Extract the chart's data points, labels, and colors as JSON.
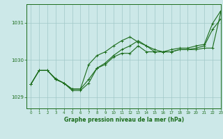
{
  "title": "Graphe pression niveau de la mer (hPa)",
  "background_color": "#cce8e8",
  "grid_color": "#a0c8c8",
  "line_color": "#1a6b1a",
  "xlim": [
    -0.5,
    23
  ],
  "ylim": [
    1028.7,
    1031.5
  ],
  "yticks": [
    1029,
    1030,
    1031
  ],
  "xticks": [
    0,
    1,
    2,
    3,
    4,
    5,
    6,
    7,
    8,
    9,
    10,
    11,
    12,
    13,
    14,
    15,
    16,
    17,
    18,
    19,
    20,
    21,
    22,
    23
  ],
  "series1": [
    1029.35,
    1029.72,
    1029.72,
    1029.48,
    1029.38,
    1029.22,
    1029.22,
    1029.48,
    1029.78,
    1029.88,
    1030.08,
    1030.18,
    1030.18,
    1030.38,
    1030.22,
    1030.22,
    1030.22,
    1030.22,
    1030.28,
    1030.28,
    1030.28,
    1030.32,
    1030.32,
    1031.28
  ],
  "series2": [
    1029.35,
    1029.72,
    1029.72,
    1029.5,
    1029.38,
    1029.18,
    1029.18,
    1029.38,
    1029.78,
    1029.92,
    1030.12,
    1030.28,
    1030.38,
    1030.52,
    1030.38,
    1030.22,
    1030.22,
    1030.22,
    1030.28,
    1030.28,
    1030.32,
    1030.38,
    1030.82,
    1031.1
  ],
  "series3": [
    1029.35,
    1029.72,
    1029.72,
    1029.48,
    1029.38,
    1029.22,
    1029.22,
    1029.88,
    1030.12,
    1030.22,
    1030.38,
    1030.52,
    1030.62,
    1030.48,
    1030.38,
    1030.28,
    1030.22,
    1030.28,
    1030.32,
    1030.32,
    1030.38,
    1030.42,
    1030.98,
    1031.32
  ]
}
